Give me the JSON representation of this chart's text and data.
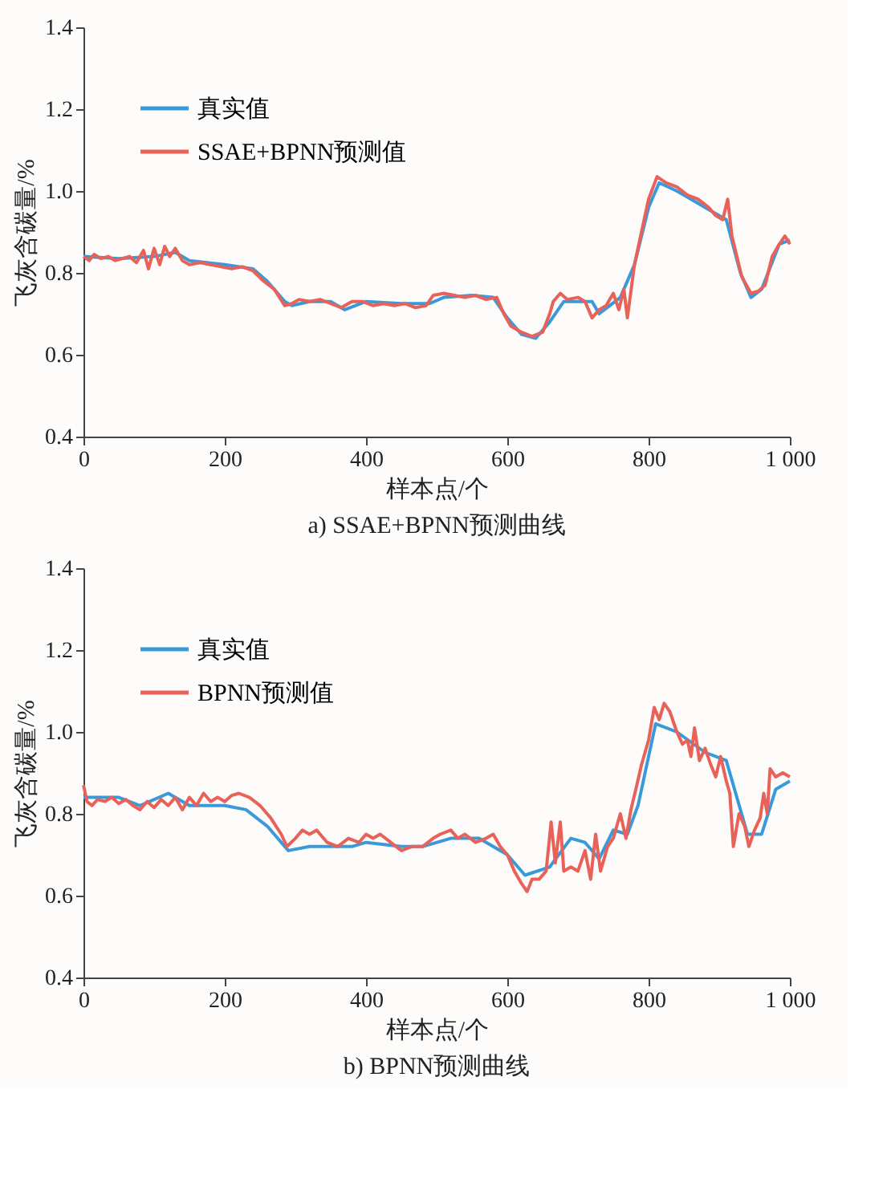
{
  "chart_data": [
    {
      "type": "line",
      "title": "a) SSAE+BPNN预测曲线",
      "xlabel": "样本点/个",
      "ylabel": "飞灰含碳量/%",
      "xlim": [
        0,
        1000
      ],
      "xticks": [
        0,
        200,
        400,
        600,
        800,
        {
          "value": 1000,
          "label": "1 000"
        }
      ],
      "ylim": [
        0.4,
        1.4
      ],
      "yticks": [
        0.4,
        0.6,
        0.8,
        {
          "value": 1,
          "label": "1.0"
        },
        1.2,
        1.4
      ],
      "grid": false,
      "legend": "top left",
      "line_style": "solid",
      "series": [
        {
          "name": "真实值",
          "color": "#3a9ad9",
          "x": [
            0,
            50,
            100,
            130,
            150,
            200,
            240,
            260,
            285,
            295,
            320,
            350,
            370,
            400,
            450,
            490,
            510,
            550,
            580,
            600,
            620,
            640,
            660,
            680,
            720,
            730,
            760,
            780,
            800,
            815,
            840,
            880,
            910,
            930,
            945,
            960,
            985,
            1000
          ],
          "values": [
            0.84,
            0.835,
            0.84,
            0.85,
            0.83,
            0.82,
            0.81,
            0.78,
            0.73,
            0.72,
            0.73,
            0.73,
            0.71,
            0.73,
            0.725,
            0.725,
            0.74,
            0.745,
            0.74,
            0.69,
            0.65,
            0.64,
            0.68,
            0.73,
            0.73,
            0.7,
            0.74,
            0.82,
            0.96,
            1.02,
            1.0,
            0.96,
            0.93,
            0.8,
            0.74,
            0.76,
            0.87,
            0.88
          ]
        },
        {
          "name": "SSAE+BPNN预测值",
          "color": "#e8625a",
          "x": [
            0,
            8,
            15,
            25,
            35,
            45,
            55,
            65,
            75,
            85,
            92,
            100,
            108,
            115,
            122,
            130,
            140,
            150,
            165,
            180,
            195,
            210,
            225,
            240,
            255,
            270,
            285,
            295,
            305,
            320,
            335,
            350,
            365,
            380,
            395,
            410,
            425,
            440,
            455,
            470,
            485,
            495,
            510,
            525,
            540,
            555,
            570,
            585,
            595,
            605,
            620,
            635,
            650,
            660,
            665,
            675,
            685,
            700,
            710,
            720,
            730,
            740,
            750,
            758,
            765,
            770,
            780,
            790,
            800,
            812,
            825,
            840,
            855,
            870,
            885,
            895,
            905,
            912,
            918,
            925,
            932,
            945,
            955,
            965,
            975,
            985,
            993,
            1000
          ],
          "values": [
            0.84,
            0.83,
            0.845,
            0.835,
            0.84,
            0.83,
            0.835,
            0.84,
            0.825,
            0.855,
            0.81,
            0.86,
            0.82,
            0.865,
            0.84,
            0.86,
            0.83,
            0.82,
            0.825,
            0.82,
            0.815,
            0.81,
            0.815,
            0.805,
            0.78,
            0.76,
            0.72,
            0.725,
            0.735,
            0.73,
            0.735,
            0.725,
            0.715,
            0.73,
            0.73,
            0.72,
            0.725,
            0.72,
            0.725,
            0.715,
            0.72,
            0.745,
            0.75,
            0.745,
            0.74,
            0.745,
            0.735,
            0.74,
            0.7,
            0.67,
            0.655,
            0.645,
            0.655,
            0.7,
            0.73,
            0.75,
            0.735,
            0.74,
            0.73,
            0.69,
            0.71,
            0.72,
            0.75,
            0.71,
            0.76,
            0.69,
            0.82,
            0.9,
            0.98,
            1.035,
            1.02,
            1.01,
            0.99,
            0.98,
            0.96,
            0.94,
            0.93,
            0.98,
            0.89,
            0.84,
            0.79,
            0.75,
            0.755,
            0.77,
            0.84,
            0.87,
            0.89,
            0.87
          ]
        }
      ]
    },
    {
      "type": "line",
      "title": "b) BPNN预测曲线",
      "xlabel": "样本点/个",
      "ylabel": "飞灰含碳量/%",
      "xlim": [
        0,
        1000
      ],
      "xticks": [
        0,
        200,
        400,
        600,
        800,
        {
          "value": 1000,
          "label": "1 000"
        }
      ],
      "ylim": [
        0.4,
        1.4
      ],
      "yticks": [
        0.4,
        0.6,
        0.8,
        {
          "value": 1,
          "label": "1.0"
        },
        1.2,
        1.4
      ],
      "grid": false,
      "legend": "top left",
      "line_style": "solid",
      "series": [
        {
          "name": "真实值",
          "color": "#3a9ad9",
          "x": [
            0,
            50,
            80,
            120,
            150,
            200,
            230,
            260,
            290,
            320,
            380,
            400,
            450,
            480,
            520,
            560,
            600,
            625,
            660,
            690,
            710,
            730,
            750,
            770,
            785,
            810,
            840,
            880,
            910,
            940,
            960,
            980,
            1000
          ],
          "values": [
            0.84,
            0.84,
            0.82,
            0.85,
            0.82,
            0.82,
            0.81,
            0.77,
            0.71,
            0.72,
            0.72,
            0.73,
            0.72,
            0.72,
            0.74,
            0.74,
            0.7,
            0.65,
            0.67,
            0.74,
            0.73,
            0.69,
            0.76,
            0.75,
            0.82,
            1.02,
            1.0,
            0.95,
            0.93,
            0.75,
            0.75,
            0.86,
            0.88
          ]
        },
        {
          "name": "BPNN预测值",
          "color": "#e8625a",
          "x": [
            0,
            5,
            12,
            20,
            30,
            40,
            50,
            60,
            70,
            80,
            90,
            100,
            110,
            120,
            130,
            140,
            150,
            160,
            170,
            180,
            190,
            200,
            210,
            220,
            235,
            250,
            265,
            280,
            288,
            300,
            310,
            320,
            330,
            345,
            360,
            375,
            390,
            400,
            410,
            420,
            435,
            450,
            465,
            480,
            495,
            505,
            520,
            530,
            540,
            555,
            570,
            580,
            590,
            600,
            610,
            620,
            628,
            635,
            645,
            655,
            662,
            668,
            675,
            680,
            690,
            700,
            710,
            718,
            725,
            732,
            742,
            750,
            760,
            768,
            775,
            782,
            790,
            800,
            808,
            815,
            822,
            830,
            840,
            848,
            855,
            860,
            865,
            872,
            880,
            888,
            895,
            902,
            910,
            915,
            920,
            928,
            936,
            942,
            950,
            958,
            963,
            968,
            972,
            980,
            990,
            1000
          ],
          "values": [
            0.87,
            0.83,
            0.82,
            0.835,
            0.83,
            0.84,
            0.825,
            0.835,
            0.82,
            0.81,
            0.83,
            0.815,
            0.835,
            0.82,
            0.84,
            0.81,
            0.84,
            0.82,
            0.85,
            0.83,
            0.84,
            0.83,
            0.845,
            0.85,
            0.84,
            0.82,
            0.79,
            0.75,
            0.72,
            0.74,
            0.76,
            0.75,
            0.76,
            0.73,
            0.72,
            0.74,
            0.73,
            0.75,
            0.74,
            0.75,
            0.73,
            0.71,
            0.72,
            0.72,
            0.74,
            0.75,
            0.76,
            0.74,
            0.75,
            0.73,
            0.74,
            0.75,
            0.72,
            0.7,
            0.66,
            0.63,
            0.61,
            0.64,
            0.64,
            0.66,
            0.78,
            0.68,
            0.78,
            0.66,
            0.67,
            0.66,
            0.71,
            0.64,
            0.75,
            0.66,
            0.72,
            0.74,
            0.8,
            0.74,
            0.81,
            0.86,
            0.92,
            0.98,
            1.06,
            1.03,
            1.07,
            1.05,
            1.0,
            0.97,
            0.98,
            0.94,
            1.01,
            0.93,
            0.96,
            0.92,
            0.89,
            0.94,
            0.88,
            0.85,
            0.72,
            0.8,
            0.77,
            0.72,
            0.76,
            0.79,
            0.85,
            0.8,
            0.91,
            0.89,
            0.9,
            0.89
          ]
        }
      ]
    }
  ]
}
